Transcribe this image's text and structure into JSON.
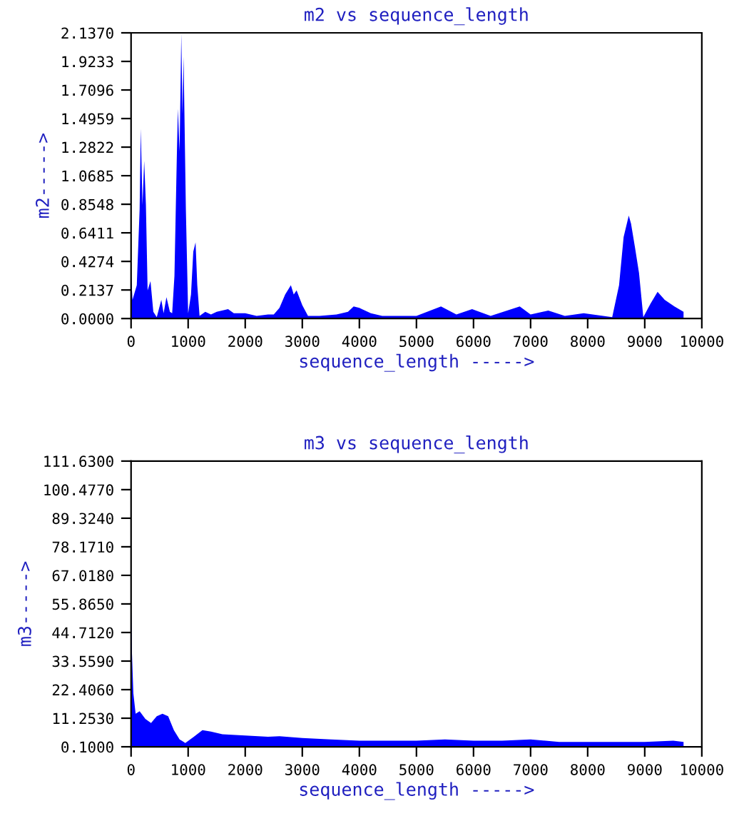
{
  "chart_data": [
    {
      "type": "area",
      "title": "m2 vs sequence_length",
      "xlabel": "sequence_length ----->",
      "ylabel": "m2----->",
      "xlim": [
        0,
        10000
      ],
      "xticks": [
        0,
        1000,
        2000,
        3000,
        4000,
        5000,
        6000,
        7000,
        8000,
        9000,
        10000
      ],
      "ylim": [
        0,
        2.137
      ],
      "yticks": [
        {
          "value": 0,
          "label": "0.0000"
        },
        {
          "value": 0.2137,
          "label": "0.2137"
        },
        {
          "value": 0.4274,
          "label": "0.4274"
        },
        {
          "value": 0.6411,
          "label": "0.6411"
        },
        {
          "value": 0.8548,
          "label": "0.8548"
        },
        {
          "value": 1.0685,
          "label": "1.0685"
        },
        {
          "value": 1.2822,
          "label": "1.2822"
        },
        {
          "value": 1.4959,
          "label": "1.4959"
        },
        {
          "value": 1.7096,
          "label": "1.7096"
        },
        {
          "value": 1.9233,
          "label": "1.9233"
        },
        {
          "value": 2.137,
          "label": "2.1370"
        }
      ],
      "grid": false,
      "series": [
        {
          "color": "#0000ff",
          "x": [
            0,
            25,
            100,
            150,
            170,
            200,
            230,
            260,
            290,
            340,
            390,
            450,
            530,
            570,
            620,
            680,
            720,
            760,
            800,
            820,
            850,
            880,
            900,
            920,
            960,
            1000,
            1050,
            1090,
            1130,
            1160,
            1200,
            1300,
            1400,
            1500,
            1700,
            1800,
            2000,
            2200,
            2400,
            2500,
            2600,
            2700,
            2800,
            2850,
            2900,
            3000,
            3100,
            3300,
            3600,
            3800,
            3900,
            4000,
            4200,
            4400,
            4600,
            5000,
            5430,
            5700,
            5975,
            6300,
            6810,
            7000,
            7310,
            7600,
            7930,
            8430,
            8550,
            8630,
            8720,
            8760,
            8830,
            8900,
            8975,
            9100,
            9225,
            9350,
            9520,
            9680
          ],
          "values": [
            0.34,
            0.14,
            0.25,
            0.82,
            1.42,
            0.85,
            1.18,
            0.85,
            0.21,
            0.28,
            0.05,
            0.01,
            0.14,
            0.04,
            0.16,
            0.05,
            0.04,
            0.32,
            1.18,
            1.57,
            1.25,
            2.13,
            1.53,
            1.96,
            0.82,
            0.04,
            0.18,
            0.5,
            0.57,
            0.25,
            0.02,
            0.05,
            0.03,
            0.05,
            0.07,
            0.04,
            0.04,
            0.02,
            0.03,
            0.03,
            0.08,
            0.18,
            0.25,
            0.18,
            0.21,
            0.1,
            0.02,
            0.02,
            0.03,
            0.05,
            0.09,
            0.08,
            0.04,
            0.02,
            0.02,
            0.02,
            0.09,
            0.03,
            0.07,
            0.02,
            0.09,
            0.03,
            0.06,
            0.02,
            0.04,
            0.01,
            0.25,
            0.61,
            0.77,
            0.71,
            0.53,
            0.34,
            0.01,
            0.11,
            0.2,
            0.14,
            0.09,
            0.05
          ]
        }
      ]
    },
    {
      "type": "area",
      "title": "m3 vs sequence_length",
      "xlabel": "sequence_length ----->",
      "ylabel": "m3----->",
      "xlim": [
        0,
        10000
      ],
      "xticks": [
        0,
        1000,
        2000,
        3000,
        4000,
        5000,
        6000,
        7000,
        8000,
        9000,
        10000
      ],
      "ylim": [
        0.1,
        111.63
      ],
      "yticks": [
        {
          "value": 0.1,
          "label": "0.1000"
        },
        {
          "value": 11.253,
          "label": "11.2530"
        },
        {
          "value": 22.406,
          "label": "22.4060"
        },
        {
          "value": 33.559,
          "label": "33.5590"
        },
        {
          "value": 44.712,
          "label": "44.7120"
        },
        {
          "value": 55.865,
          "label": "55.8650"
        },
        {
          "value": 67.018,
          "label": "67.0180"
        },
        {
          "value": 78.171,
          "label": "78.1710"
        },
        {
          "value": 89.324,
          "label": "89.3240"
        },
        {
          "value": 100.477,
          "label": "100.4770"
        },
        {
          "value": 111.63,
          "label": "111.6300"
        }
      ],
      "grid": false,
      "series": [
        {
          "color": "#0000ff",
          "x": [
            0,
            15,
            40,
            80,
            150,
            250,
            350,
            450,
            550,
            650,
            750,
            850,
            950,
            1100,
            1250,
            1400,
            1600,
            2000,
            2400,
            2600,
            3000,
            3500,
            4000,
            4500,
            5000,
            5500,
            6000,
            6500,
            7000,
            7500,
            8000,
            8500,
            9000,
            9500,
            9680
          ],
          "values": [
            58,
            37,
            21,
            13,
            14,
            11,
            9.4,
            12,
            13,
            12,
            6.6,
            3,
            1.6,
            4,
            6.6,
            6,
            5,
            4.5,
            4,
            4.2,
            3.5,
            3,
            2.5,
            2.5,
            2.5,
            3,
            2.5,
            2.5,
            3,
            2,
            2,
            2,
            2,
            2.5,
            2
          ]
        }
      ]
    }
  ]
}
